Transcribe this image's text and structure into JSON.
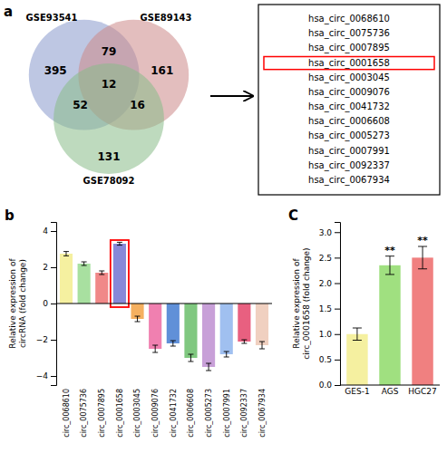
{
  "chart_data": [
    {
      "type": "venn",
      "title": "a",
      "series": [
        {
          "name": "GSE93541",
          "color": "#8899cc"
        },
        {
          "name": "GSE89143",
          "color": "#cc8888"
        },
        {
          "name": "GSE78092",
          "color": "#88bb88"
        }
      ],
      "categories": [
        [
          "GSE93541"
        ],
        [
          "GSE89143"
        ],
        [
          "GSE78092"
        ],
        [
          "GSE93541",
          "GSE89143"
        ],
        [
          "GSE93541",
          "GSE78092"
        ],
        [
          "GSE89143",
          "GSE78092"
        ],
        [
          "GSE93541",
          "GSE89143",
          "GSE78092"
        ]
      ],
      "values": [
        395,
        161,
        131,
        79,
        52,
        16,
        12
      ]
    },
    {
      "type": "list",
      "categories": [
        "hsa_circ_0068610",
        "hsa_circ_0075736",
        "hsa_circ_0007895",
        "hsa_circ_0001658",
        "hsa_circ_0003045",
        "hsa_circ_0009076",
        "hsa_circ_0041732",
        "hsa_circ_0006608",
        "hsa_circ_0005273",
        "hsa_circ_0007991",
        "hsa_circ_0092337",
        "hsa_circ_0067934"
      ],
      "annotations": [
        {
          "category": "hsa_circ_0001658",
          "color": "red"
        }
      ]
    },
    {
      "type": "bar",
      "title": "b",
      "categories": [
        "circ_0068610",
        "circ_0075736",
        "circ_0007895",
        "circ_0001658",
        "circ_0003045",
        "circ_0009076",
        "circ_0041732",
        "circ_0006608",
        "circ_0005273",
        "circ_0007991",
        "circ_0092337",
        "circ_0067934"
      ],
      "values": [
        2.75,
        2.2,
        1.7,
        3.3,
        -0.85,
        -2.5,
        -2.2,
        -3.0,
        -3.5,
        -2.8,
        -2.1,
        -2.3
      ],
      "errors": [
        0.12,
        0.1,
        0.1,
        0.08,
        0.15,
        0.2,
        0.15,
        0.2,
        0.2,
        0.15,
        0.1,
        0.2
      ],
      "colors": [
        "#f5f0a0",
        "#a8e0a0",
        "#f08888",
        "#8888d8",
        "#f5b060",
        "#f080b0",
        "#6090d8",
        "#80c880",
        "#c8a0d8",
        "#a0c0f0",
        "#e86080",
        "#f0d0c0"
      ],
      "ylabel": "Relative expression of\ncircRNA (fold change)",
      "ylim": [
        -4.5,
        4.5
      ],
      "yticks": [
        {
          "value": -4,
          "label": "−4"
        },
        {
          "value": -2,
          "label": "−2"
        },
        0,
        2,
        4
      ],
      "annotations": [
        {
          "category": "circ_0001658",
          "color": "red"
        }
      ]
    },
    {
      "type": "bar",
      "title": "C",
      "categories": [
        "GES-1",
        "AGS",
        "HGC27"
      ],
      "values": [
        1.0,
        2.35,
        2.5
      ],
      "errors": [
        0.12,
        0.18,
        0.22
      ],
      "colors": [
        "#f5f0a0",
        "#a0e080",
        "#f08080"
      ],
      "ylabel": "Relative expression of\ncirc_0001658 (fold change)",
      "ylim": [
        0,
        3.2
      ],
      "yticks": [
        {
          "value": 0,
          "label": "0.0"
        },
        0.5,
        {
          "value": 1.0,
          "label": "1.0"
        },
        1.5,
        {
          "value": 2.0,
          "label": "2.0"
        },
        2.5,
        {
          "value": 3.0,
          "label": "3.0"
        }
      ],
      "annotations": [
        {
          "category": "AGS",
          "text": "**"
        },
        {
          "category": "HGC27",
          "text": "**"
        }
      ]
    }
  ]
}
